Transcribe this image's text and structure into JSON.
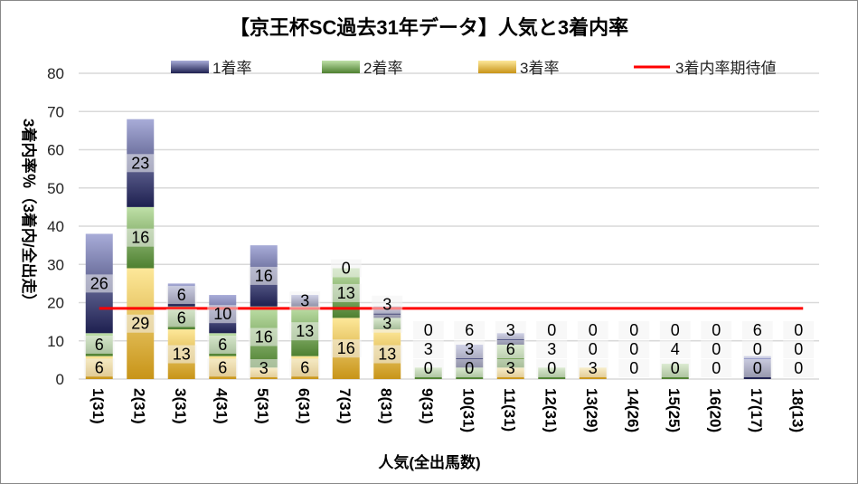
{
  "chart_data": {
    "type": "bar",
    "stacked": true,
    "title": "【京王杯SC過去31年データ】人気と3着内率",
    "xlabel": "人気(全出馬数)",
    "ylabel": "3着内率％（3着内/全出走）",
    "ylim": [
      0,
      80
    ],
    "yticks": [
      0,
      10,
      20,
      30,
      40,
      50,
      60,
      70,
      80
    ],
    "grid": true,
    "legend_position": "top",
    "categories": [
      "1(31)",
      "2(31)",
      "3(31)",
      "4(31)",
      "5(31)",
      "6(31)",
      "7(31)",
      "8(31)",
      "9(31)",
      "10(31)",
      "11(31)",
      "12(31)",
      "13(29)",
      "14(26)",
      "15(25)",
      "16(20)",
      "17(17)",
      "18(13)"
    ],
    "series": [
      {
        "name": "3着率",
        "color": "#e0b040",
        "values": [
          6,
          29,
          13,
          6,
          3,
          6,
          16,
          13,
          0,
          0,
          3,
          0,
          3,
          0,
          0,
          0,
          0,
          0
        ]
      },
      {
        "name": "2着率",
        "color": "#70a850",
        "values": [
          6,
          16,
          6,
          6,
          16,
          13,
          13,
          3,
          3,
          3,
          6,
          3,
          0,
          0,
          4,
          0,
          0,
          0
        ]
      },
      {
        "name": "1着率",
        "color": "#6870b8",
        "values": [
          26,
          23,
          6,
          10,
          16,
          3,
          0,
          3,
          0,
          6,
          3,
          0,
          0,
          0,
          0,
          0,
          6,
          0
        ]
      }
    ],
    "line": {
      "name": "3着内率期待値",
      "color": "#ff0000",
      "value": 18.5
    }
  }
}
